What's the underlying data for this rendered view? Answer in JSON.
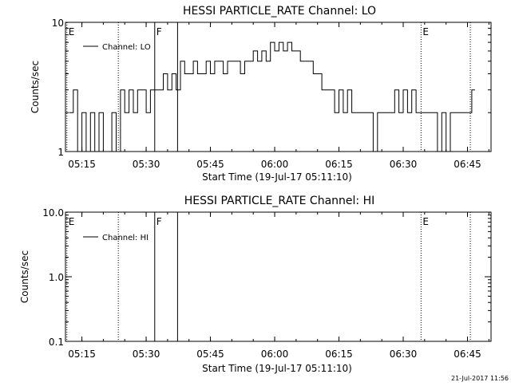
{
  "chart_data": [
    {
      "type": "line",
      "title": "HESSI PARTICLE_RATE Channel: LO",
      "xlabel": "Start Time (19-Jul-17 05:11:10)",
      "ylabel": "Counts/sec",
      "y_scale": "log",
      "ylim": [
        1,
        10
      ],
      "xlim": [
        "05:11:10",
        "06:50:30"
      ],
      "x_tick_labels": [
        "05:15",
        "05:30",
        "05:45",
        "06:00",
        "06:15",
        "06:30",
        "06:45"
      ],
      "y_tick_labels": [
        "1",
        "10"
      ],
      "legend": {
        "position": "top-left",
        "entries": [
          "Channel: LO"
        ]
      },
      "markers": [
        {
          "time": "05:11:30",
          "label": "E",
          "style": "dotted"
        },
        {
          "time": "05:23:30",
          "label": "",
          "style": "dotted"
        },
        {
          "time": "05:32:00",
          "label": "F",
          "style": "solid"
        },
        {
          "time": "05:37:20",
          "label": "",
          "style": "solid"
        },
        {
          "time": "06:34:10",
          "label": "E",
          "style": "dotted"
        },
        {
          "time": "06:45:40",
          "label": "",
          "style": "dotted"
        }
      ],
      "series": [
        {
          "name": "Channel: LO",
          "x": [
            "05:12:00",
            "05:13:00",
            "05:14:00",
            "05:15:00",
            "05:16:00",
            "05:17:00",
            "05:18:00",
            "05:19:00",
            "05:20:00",
            "05:21:00",
            "05:22:00",
            "05:23:00",
            "05:24:00",
            "05:25:00",
            "05:26:00",
            "05:27:00",
            "05:28:00",
            "05:29:00",
            "05:30:00",
            "05:31:00",
            "05:32:00",
            "05:33:00",
            "05:34:00",
            "05:35:00",
            "05:36:00",
            "05:37:00",
            "05:38:00",
            "05:39:00",
            "05:40:00",
            "05:41:00",
            "05:42:00",
            "05:43:00",
            "05:44:00",
            "05:45:00",
            "05:46:00",
            "05:47:00",
            "05:48:00",
            "05:49:00",
            "05:50:00",
            "05:51:00",
            "05:52:00",
            "05:53:00",
            "05:54:00",
            "05:55:00",
            "05:56:00",
            "05:57:00",
            "05:58:00",
            "05:59:00",
            "06:00:00",
            "06:01:00",
            "06:02:00",
            "06:03:00",
            "06:04:00",
            "06:05:00",
            "06:06:00",
            "06:07:00",
            "06:08:00",
            "06:09:00",
            "06:10:00",
            "06:11:00",
            "06:12:00",
            "06:13:00",
            "06:14:00",
            "06:15:00",
            "06:16:00",
            "06:17:00",
            "06:18:00",
            "06:19:00",
            "06:20:00",
            "06:21:00",
            "06:22:00",
            "06:23:00",
            "06:24:00",
            "06:25:00",
            "06:26:00",
            "06:27:00",
            "06:28:00",
            "06:29:00",
            "06:30:00",
            "06:31:00",
            "06:32:00",
            "06:33:00",
            "06:34:00",
            "06:35:00",
            "06:36:00",
            "06:37:00",
            "06:38:00",
            "06:39:00",
            "06:40:00",
            "06:41:00",
            "06:42:00",
            "06:43:00",
            "06:44:00",
            "06:45:00",
            "06:46:00"
          ],
          "y": [
            2,
            3,
            1,
            2,
            1,
            2,
            1,
            2,
            1,
            1,
            2,
            1,
            3,
            2,
            3,
            2,
            3,
            3,
            2,
            3,
            3,
            3,
            4,
            3,
            4,
            3,
            5,
            4,
            4,
            5,
            4,
            4,
            5,
            4,
            5,
            5,
            4,
            5,
            5,
            5,
            4,
            5,
            5,
            6,
            5,
            6,
            5,
            7,
            6,
            7,
            6,
            7,
            6,
            6,
            5,
            5,
            5,
            4,
            4,
            3,
            3,
            3,
            2,
            3,
            2,
            3,
            2,
            2,
            2,
            2,
            2,
            1,
            2,
            2,
            2,
            2,
            3,
            2,
            3,
            2,
            3,
            2,
            2,
            2,
            2,
            2,
            1,
            2,
            1,
            2,
            2,
            2,
            2,
            2,
            3
          ]
        }
      ]
    },
    {
      "type": "line",
      "title": "HESSI PARTICLE_RATE Channel: HI",
      "xlabel": "Start Time (19-Jul-17 05:11:10)",
      "ylabel": "Counts/sec",
      "y_scale": "log",
      "ylim": [
        0.1,
        10.0
      ],
      "xlim": [
        "05:11:10",
        "06:50:30"
      ],
      "x_tick_labels": [
        "05:15",
        "05:30",
        "05:45",
        "06:00",
        "06:15",
        "06:30",
        "06:45"
      ],
      "y_tick_labels": [
        "0.1",
        "1.0",
        "10.0"
      ],
      "legend": {
        "position": "top-left",
        "entries": [
          "Channel: HI"
        ]
      },
      "markers": [
        {
          "time": "05:11:30",
          "label": "E",
          "style": "dotted"
        },
        {
          "time": "05:23:30",
          "label": "",
          "style": "dotted"
        },
        {
          "time": "05:32:00",
          "label": "F",
          "style": "solid"
        },
        {
          "time": "05:37:20",
          "label": "",
          "style": "solid"
        },
        {
          "time": "06:34:10",
          "label": "E",
          "style": "dotted"
        },
        {
          "time": "06:45:40",
          "label": "",
          "style": "dotted"
        }
      ],
      "series": [
        {
          "name": "Channel: HI",
          "x": [],
          "y": []
        }
      ]
    }
  ],
  "footer": {
    "timestamp": "21-Jul-2017 11:56"
  }
}
